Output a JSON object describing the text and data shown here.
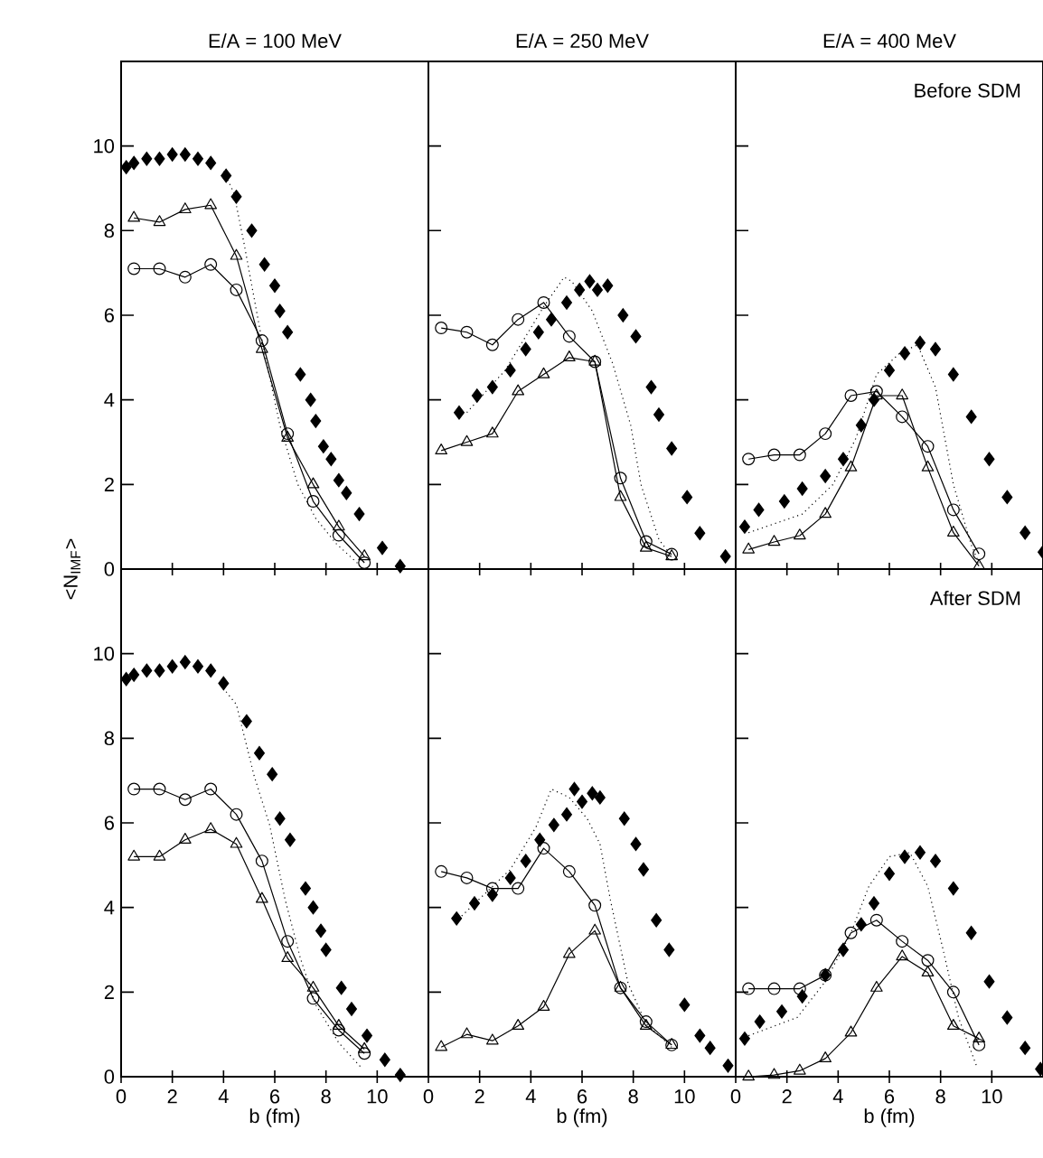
{
  "chart_data": [
    {
      "type": "line",
      "title": "E/A = 100 MeV",
      "ylabel": "<N$_{IMF}$>",
      "xlim": [
        0,
        12
      ],
      "ylim": [
        0,
        12
      ],
      "xticks": [
        0,
        2,
        4,
        6,
        8,
        10
      ],
      "yticks": [
        0,
        2,
        4,
        6,
        8,
        10
      ],
      "tick_labels": "y",
      "series": [
        {
          "type": "scatter",
          "marker": "diamond",
          "color": "#000000",
          "x": [
            0.2,
            0.5,
            1,
            1.5,
            2,
            2.5,
            3,
            3.5,
            4.1,
            4.5,
            5.1,
            5.6,
            6.0,
            6.2,
            6.5,
            7.0,
            7.4,
            7.6,
            7.9,
            8.2,
            8.5,
            8.8,
            9.3,
            10.2,
            10.9
          ],
          "values": [
            9.5,
            9.6,
            9.7,
            9.7,
            9.8,
            9.8,
            9.7,
            9.6,
            9.3,
            8.8,
            8.0,
            7.2,
            6.7,
            6.1,
            5.6,
            4.6,
            4.0,
            3.5,
            2.9,
            2.6,
            2.1,
            1.8,
            1.3,
            0.5,
            0.07
          ]
        },
        {
          "marker": "triangle",
          "color": "#000000",
          "x": [
            0.5,
            1.5,
            2.5,
            3.5,
            4.5,
            5.5,
            6.5,
            7.5,
            8.5,
            9.5
          ],
          "values": [
            8.3,
            8.2,
            8.5,
            8.6,
            7.4,
            5.2,
            3.1,
            2.0,
            1.0,
            0.3
          ]
        },
        {
          "marker": "circle",
          "color": "#000000",
          "x": [
            0.5,
            1.5,
            2.5,
            3.5,
            4.5,
            5.5,
            6.5,
            7.5,
            8.5,
            9.5
          ],
          "values": [
            7.1,
            7.1,
            6.9,
            7.2,
            6.6,
            5.4,
            3.2,
            1.6,
            0.8,
            0.15
          ]
        },
        {
          "marker": "none",
          "line_style": "dotted",
          "color": "#000000",
          "x": [
            4.0,
            4.4,
            4.8,
            5.5,
            6.2,
            6.9,
            7.6,
            8.4,
            9.3
          ],
          "values": [
            9.4,
            8.9,
            7.7,
            5.4,
            3.4,
            2.0,
            1.2,
            0.6,
            0.1
          ]
        }
      ]
    },
    {
      "type": "line",
      "title": "E/A = 250 MeV",
      "xlim": [
        0,
        12
      ],
      "ylim": [
        0,
        12
      ],
      "xticks": [
        0,
        2,
        4,
        6,
        8,
        10
      ],
      "yticks": [
        0,
        2,
        4,
        6,
        8,
        10
      ],
      "tick_labels": false,
      "series": [
        {
          "type": "scatter",
          "marker": "diamond",
          "color": "#000000",
          "x": [
            1.2,
            1.9,
            2.5,
            3.2,
            3.8,
            4.3,
            4.8,
            5.4,
            5.9,
            6.3,
            6.6,
            7.0,
            7.6,
            8.1,
            8.7,
            9.0,
            9.5,
            10.1,
            10.6,
            11.6
          ],
          "values": [
            3.7,
            4.1,
            4.3,
            4.7,
            5.2,
            5.6,
            5.9,
            6.3,
            6.6,
            6.8,
            6.6,
            6.7,
            6.0,
            5.5,
            4.3,
            3.65,
            2.85,
            1.7,
            0.85,
            0.3
          ]
        },
        {
          "marker": "triangle",
          "color": "#000000",
          "x": [
            0.5,
            1.5,
            2.5,
            3.5,
            4.5,
            5.5,
            6.5,
            7.5,
            8.5,
            9.5
          ],
          "values": [
            2.8,
            3.0,
            3.2,
            4.2,
            4.6,
            5.0,
            4.9,
            1.7,
            0.5,
            0.3
          ]
        },
        {
          "marker": "circle",
          "color": "#000000",
          "x": [
            0.5,
            1.5,
            2.5,
            3.5,
            4.5,
            5.5,
            6.5,
            7.5,
            8.5,
            9.5
          ],
          "values": [
            5.7,
            5.6,
            5.3,
            5.9,
            6.3,
            5.5,
            4.9,
            2.15,
            0.65,
            0.35
          ]
        },
        {
          "marker": "none",
          "line_style": "dotted",
          "color": "#000000",
          "x": [
            1.5,
            3.0,
            4.5,
            5.3,
            5.6,
            6.4,
            7.2,
            7.9,
            8.3,
            9.0,
            9.5
          ],
          "values": [
            3.7,
            4.7,
            6.2,
            6.9,
            6.8,
            6.1,
            4.85,
            3.4,
            2.0,
            0.7,
            0.3
          ]
        }
      ]
    },
    {
      "type": "line",
      "title": "E/A = 400 MeV",
      "annotations": [
        "Before SDM"
      ],
      "xlim": [
        0,
        12
      ],
      "ylim": [
        0,
        12
      ],
      "xticks": [
        0,
        2,
        4,
        6,
        8,
        10
      ],
      "yticks": [
        0,
        2,
        4,
        6,
        8,
        10
      ],
      "tick_labels": false,
      "series": [
        {
          "type": "scatter",
          "marker": "diamond",
          "color": "#000000",
          "x": [
            0.35,
            0.9,
            1.9,
            2.6,
            3.5,
            4.2,
            4.9,
            5.4,
            6.0,
            6.6,
            7.2,
            7.8,
            8.5,
            9.2,
            9.9,
            10.6,
            11.3,
            12.0
          ],
          "values": [
            1.0,
            1.4,
            1.6,
            1.9,
            2.2,
            2.6,
            3.4,
            4.0,
            4.7,
            5.1,
            5.35,
            5.2,
            4.6,
            3.6,
            2.6,
            1.7,
            0.86,
            0.4
          ]
        },
        {
          "marker": "triangle",
          "color": "#000000",
          "x": [
            0.5,
            1.5,
            2.5,
            3.5,
            4.5,
            5.5,
            6.5,
            7.5,
            8.5,
            9.5
          ],
          "values": [
            0.46,
            0.64,
            0.79,
            1.3,
            2.4,
            4.1,
            4.1,
            2.4,
            0.86,
            0.07
          ]
        },
        {
          "marker": "circle",
          "color": "#000000",
          "x": [
            0.5,
            1.5,
            2.5,
            3.5,
            4.5,
            5.5,
            6.5,
            7.5,
            8.5,
            9.5
          ],
          "values": [
            2.6,
            2.7,
            2.7,
            3.2,
            4.1,
            4.2,
            3.6,
            2.9,
            1.4,
            0.36
          ]
        },
        {
          "marker": "none",
          "line_style": "dotted",
          "color": "#000000",
          "x": [
            0.5,
            2.6,
            3.8,
            4.7,
            5.5,
            6.4,
            7.1,
            7.8,
            8.5,
            9.2,
            9.5
          ],
          "values": [
            0.86,
            1.3,
            2.0,
            3.1,
            4.6,
            5.1,
            5.3,
            4.3,
            2.0,
            0.57,
            0.14
          ]
        }
      ]
    },
    {
      "type": "line",
      "xlabel": "b (fm)",
      "xlim": [
        0,
        12
      ],
      "ylim": [
        0,
        12
      ],
      "xticks": [
        0,
        2,
        4,
        6,
        8,
        10
      ],
      "yticks": [
        0,
        2,
        4,
        6,
        8,
        10
      ],
      "series": [
        {
          "type": "scatter",
          "marker": "diamond",
          "color": "#000000",
          "x": [
            0.2,
            0.5,
            1,
            1.5,
            2,
            2.5,
            3,
            3.5,
            4.0,
            4.9,
            5.4,
            5.9,
            6.2,
            6.6,
            7.2,
            7.5,
            7.8,
            8.0,
            8.6,
            9.0,
            9.6,
            10.3,
            10.9
          ],
          "values": [
            9.4,
            9.5,
            9.6,
            9.6,
            9.7,
            9.8,
            9.7,
            9.6,
            9.3,
            8.4,
            7.65,
            7.15,
            6.1,
            5.6,
            4.45,
            4.0,
            3.45,
            3.0,
            2.1,
            1.6,
            0.97,
            0.4,
            0.04
          ]
        },
        {
          "marker": "triangle",
          "color": "#000000",
          "x": [
            0.5,
            1.5,
            2.5,
            3.5,
            4.5,
            5.5,
            6.5,
            7.5,
            8.5,
            9.5
          ],
          "values": [
            5.2,
            5.2,
            5.6,
            5.85,
            5.5,
            4.2,
            2.8,
            2.1,
            1.2,
            0.65
          ]
        },
        {
          "marker": "circle",
          "color": "#000000",
          "x": [
            0.5,
            1.5,
            2.5,
            3.5,
            4.5,
            5.5,
            6.5,
            7.5,
            8.5,
            9.5
          ],
          "values": [
            6.8,
            6.8,
            6.55,
            6.8,
            6.2,
            5.1,
            3.2,
            1.85,
            1.1,
            0.55
          ]
        },
        {
          "marker": "none",
          "line_style": "dotted",
          "color": "#000000",
          "x": [
            4.1,
            4.5,
            5.2,
            5.8,
            6.4,
            7.0,
            7.6,
            8.5,
            9.4
          ],
          "values": [
            9.1,
            8.8,
            7.1,
            5.95,
            4.2,
            2.8,
            1.7,
            0.8,
            0.2
          ]
        }
      ]
    },
    {
      "type": "line",
      "xlabel": "b (fm)",
      "xlim": [
        0,
        12
      ],
      "ylim": [
        0,
        12
      ],
      "xticks": [
        0,
        2,
        4,
        6,
        8,
        10
      ],
      "yticks": [
        0,
        2,
        4,
        6,
        8,
        10
      ],
      "tick_labels": "x",
      "series": [
        {
          "type": "scatter",
          "marker": "diamond",
          "color": "#000000",
          "x": [
            1.1,
            1.8,
            2.5,
            3.2,
            3.8,
            4.35,
            4.9,
            5.4,
            5.7,
            6.0,
            6.4,
            6.7,
            7.65,
            8.1,
            8.4,
            8.9,
            9.4,
            10.0,
            10.6,
            11.0,
            11.7
          ],
          "values": [
            3.74,
            4.1,
            4.3,
            4.7,
            5.1,
            5.6,
            5.95,
            6.2,
            6.8,
            6.5,
            6.7,
            6.6,
            6.1,
            5.5,
            4.9,
            3.7,
            3.0,
            1.7,
            0.97,
            0.68,
            0.26
          ]
        },
        {
          "marker": "triangle",
          "color": "#000000",
          "x": [
            0.5,
            1.5,
            2.5,
            3.5,
            4.5,
            5.5,
            6.5,
            7.5,
            8.5,
            9.5
          ],
          "values": [
            0.7,
            1.0,
            0.85,
            1.2,
            1.65,
            2.9,
            3.45,
            2.1,
            1.2,
            0.75
          ]
        },
        {
          "marker": "circle",
          "color": "#000000",
          "x": [
            0.5,
            1.5,
            2.5,
            3.5,
            4.5,
            5.5,
            6.5,
            7.5,
            8.5,
            9.5
          ],
          "values": [
            4.85,
            4.7,
            4.45,
            4.45,
            5.4,
            4.85,
            4.05,
            2.1,
            1.3,
            0.75
          ]
        },
        {
          "marker": "none",
          "line_style": "dotted",
          "color": "#000000",
          "x": [
            1.3,
            3.2,
            4.2,
            4.8,
            5.5,
            6.2,
            6.7,
            7.1,
            7.8,
            8.5,
            9.5
          ],
          "values": [
            3.8,
            4.9,
            5.9,
            6.8,
            6.6,
            6.1,
            5.5,
            4.2,
            2.2,
            1.25,
            0.7
          ]
        }
      ]
    },
    {
      "type": "line",
      "xlabel": "b (fm)",
      "annotations": [
        "After  SDM"
      ],
      "xlim": [
        0,
        12
      ],
      "ylim": [
        0,
        12
      ],
      "xticks": [
        0,
        2,
        4,
        6,
        8,
        10
      ],
      "yticks": [
        0,
        2,
        4,
        6,
        8,
        10
      ],
      "tick_labels": "x",
      "series": [
        {
          "type": "scatter",
          "marker": "diamond",
          "color": "#000000",
          "x": [
            0.35,
            0.94,
            1.8,
            2.6,
            3.5,
            4.2,
            4.9,
            5.4,
            6.0,
            6.6,
            7.2,
            7.8,
            8.5,
            9.2,
            9.9,
            10.6,
            11.3,
            11.9
          ],
          "values": [
            0.9,
            1.3,
            1.54,
            1.9,
            2.4,
            3.0,
            3.6,
            4.1,
            4.8,
            5.2,
            5.3,
            5.1,
            4.45,
            3.4,
            2.25,
            1.4,
            0.68,
            0.18
          ]
        },
        {
          "marker": "triangle",
          "color": "#000000",
          "x": [
            0.5,
            1.5,
            2.5,
            3.5,
            4.5,
            5.5,
            6.5,
            7.5,
            8.5,
            9.5
          ],
          "values": [
            0,
            0.04,
            0.14,
            0.43,
            1.04,
            2.1,
            2.84,
            2.46,
            1.2,
            0.9
          ]
        },
        {
          "marker": "circle",
          "color": "#000000",
          "x": [
            0.5,
            1.5,
            2.5,
            3.5,
            4.5,
            5.5,
            6.5,
            7.5,
            8.5,
            9.5
          ],
          "values": [
            2.08,
            2.08,
            2.08,
            2.4,
            3.4,
            3.7,
            3.2,
            2.75,
            2.0,
            0.75
          ]
        },
        {
          "marker": "none",
          "line_style": "dotted",
          "color": "#000000",
          "x": [
            0.5,
            2.4,
            3.5,
            4.5,
            5.2,
            6.0,
            6.8,
            7.5,
            8.1,
            8.7,
            9.4
          ],
          "values": [
            0.97,
            1.4,
            2.25,
            3.4,
            4.5,
            5.2,
            5.3,
            4.5,
            3.0,
            1.4,
            0.26
          ]
        }
      ]
    }
  ]
}
